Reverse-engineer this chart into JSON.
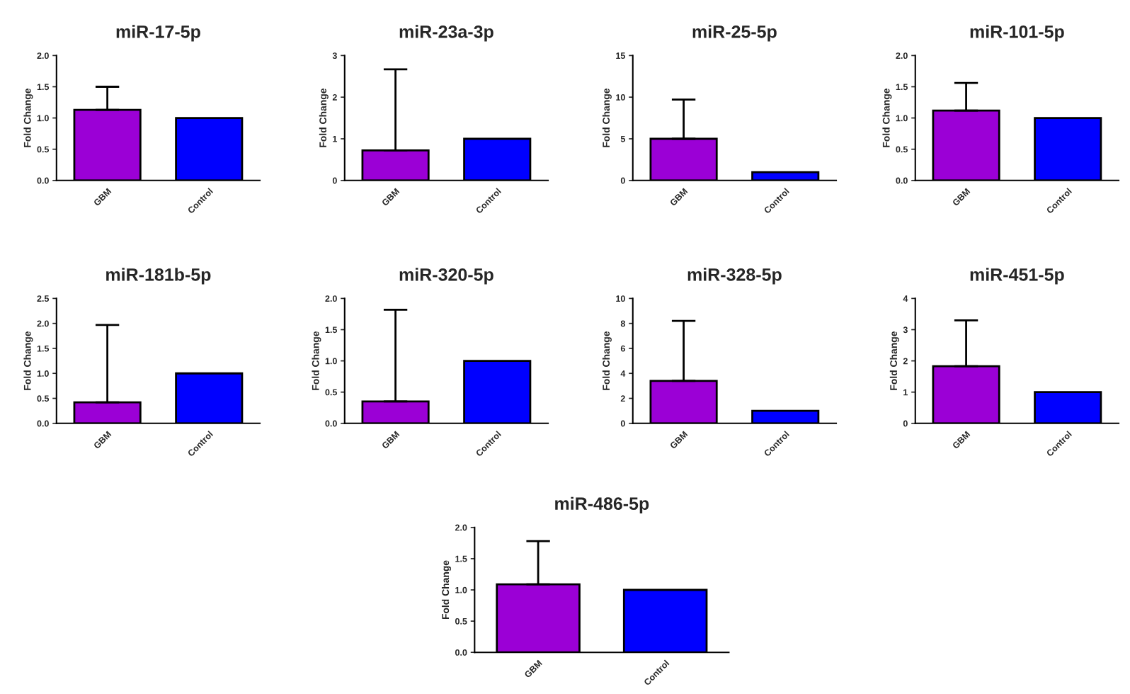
{
  "chart_data": [
    {
      "type": "bar",
      "title": "miR-17-5p",
      "ylabel": "Fold Change",
      "categories": [
        "GBM",
        "Control"
      ],
      "values": [
        1.13,
        1.0
      ],
      "colors": [
        "#9b00d6",
        "#0000ff"
      ],
      "errors": [
        [
          1.13,
          1.5
        ],
        null
      ],
      "ylim": [
        0,
        2.0
      ],
      "yticks": [
        {
          "value": 0,
          "label": "0.0"
        },
        {
          "value": 0.5,
          "label": "0.5"
        },
        {
          "value": 1.0,
          "label": "1.0"
        },
        {
          "value": 1.5,
          "label": "1.5"
        },
        {
          "value": 2.0,
          "label": "2.0"
        }
      ]
    },
    {
      "type": "bar",
      "title": "miR-23a-3p",
      "ylabel": "Fold Change",
      "categories": [
        "GBM",
        "Control"
      ],
      "values": [
        0.72,
        1.0
      ],
      "colors": [
        "#9b00d6",
        "#0000ff"
      ],
      "errors": [
        [
          0.72,
          2.67
        ],
        null
      ],
      "ylim": [
        0,
        3
      ],
      "yticks": [
        0,
        1,
        2,
        3
      ]
    },
    {
      "type": "bar",
      "title": "miR-25-5p",
      "ylabel": "Fold Change",
      "categories": [
        "GBM",
        "Control"
      ],
      "values": [
        5.0,
        1.0
      ],
      "colors": [
        "#9b00d6",
        "#0000ff"
      ],
      "errors": [
        [
          5.0,
          9.7
        ],
        null
      ],
      "ylim": [
        0,
        15
      ],
      "yticks": [
        0,
        5,
        10,
        15
      ]
    },
    {
      "type": "bar",
      "title": "miR-101-5p",
      "ylabel": "Fold Change",
      "categories": [
        "GBM",
        "Control"
      ],
      "values": [
        1.12,
        1.0
      ],
      "colors": [
        "#9b00d6",
        "#0000ff"
      ],
      "errors": [
        [
          1.12,
          1.56
        ],
        null
      ],
      "ylim": [
        0,
        2.0
      ],
      "yticks": [
        {
          "value": 0,
          "label": "0.0"
        },
        {
          "value": 0.5,
          "label": "0.5"
        },
        {
          "value": 1.0,
          "label": "1.0"
        },
        {
          "value": 1.5,
          "label": "1.5"
        },
        {
          "value": 2.0,
          "label": "2.0"
        }
      ]
    },
    {
      "type": "bar",
      "title": "miR-181b-5p",
      "ylabel": "Fold Change",
      "categories": [
        "GBM",
        "Control"
      ],
      "values": [
        0.42,
        1.0
      ],
      "colors": [
        "#9b00d6",
        "#0000ff"
      ],
      "errors": [
        [
          0.42,
          1.97
        ],
        null
      ],
      "ylim": [
        0,
        2.5
      ],
      "yticks": [
        {
          "value": 0,
          "label": "0.0"
        },
        {
          "value": 0.5,
          "label": "0.5"
        },
        {
          "value": 1.0,
          "label": "1.0"
        },
        {
          "value": 1.5,
          "label": "1.5"
        },
        {
          "value": 2.0,
          "label": "2.0"
        },
        {
          "value": 2.5,
          "label": "2.5"
        }
      ]
    },
    {
      "type": "bar",
      "title": "miR-320-5p",
      "ylabel": "Fold Change",
      "categories": [
        "GBM",
        "Control"
      ],
      "values": [
        0.35,
        1.0
      ],
      "colors": [
        "#9b00d6",
        "#0000ff"
      ],
      "errors": [
        [
          0.35,
          1.82
        ],
        null
      ],
      "ylim": [
        0,
        2.0
      ],
      "yticks": [
        {
          "value": 0,
          "label": "0.0"
        },
        {
          "value": 0.5,
          "label": "0.5"
        },
        {
          "value": 1.0,
          "label": "1.0"
        },
        {
          "value": 1.5,
          "label": "1.5"
        },
        {
          "value": 2.0,
          "label": "2.0"
        }
      ]
    },
    {
      "type": "bar",
      "title": "miR-328-5p",
      "ylabel": "Fold Change",
      "categories": [
        "GBM",
        "Control"
      ],
      "values": [
        3.4,
        1.0
      ],
      "colors": [
        "#9b00d6",
        "#0000ff"
      ],
      "errors": [
        [
          3.4,
          8.2
        ],
        null
      ],
      "ylim": [
        0,
        10
      ],
      "yticks": [
        0,
        2,
        4,
        6,
        8,
        10
      ]
    },
    {
      "type": "bar",
      "title": "miR-451-5p",
      "ylabel": "Fold Change",
      "categories": [
        "GBM",
        "Control"
      ],
      "values": [
        1.83,
        1.0
      ],
      "colors": [
        "#9b00d6",
        "#0000ff"
      ],
      "errors": [
        [
          1.83,
          3.3
        ],
        null
      ],
      "ylim": [
        0,
        4
      ],
      "yticks": [
        0,
        1,
        2,
        3,
        4
      ]
    },
    {
      "type": "bar",
      "title": "miR-486-5p",
      "ylabel": "Fold Change",
      "categories": [
        "GBM",
        "Control"
      ],
      "values": [
        1.09,
        1.0
      ],
      "colors": [
        "#9b00d6",
        "#0000ff"
      ],
      "errors": [
        [
          1.09,
          1.78
        ],
        null
      ],
      "ylim": [
        0,
        2.0
      ],
      "yticks": [
        {
          "value": 0,
          "label": "0.0"
        },
        {
          "value": 0.5,
          "label": "0.5"
        },
        {
          "value": 1.0,
          "label": "1.0"
        },
        {
          "value": 1.5,
          "label": "1.5"
        },
        {
          "value": 2.0,
          "label": "2.0"
        }
      ]
    }
  ]
}
